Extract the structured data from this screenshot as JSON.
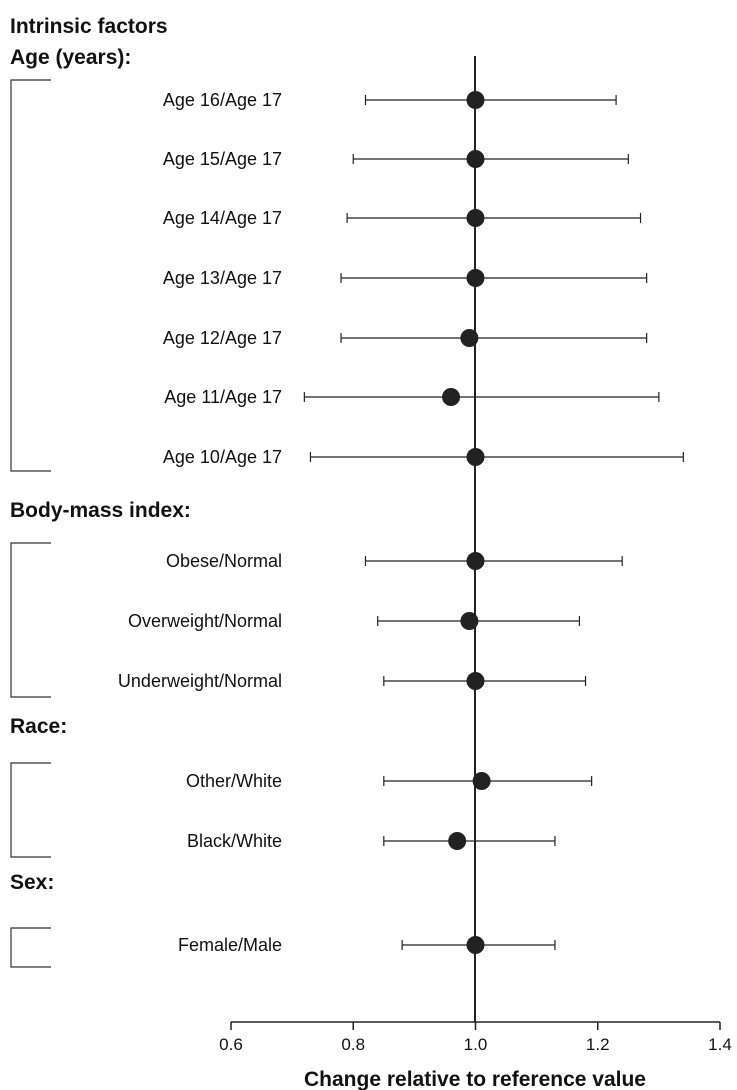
{
  "chart_data": {
    "type": "scatter",
    "title": "Intrinsic factors",
    "xlabel": "Change relative to reference value",
    "ylabel": "",
    "xlim": [
      0.6,
      1.4
    ],
    "xticks": [
      "0.6",
      "0.8",
      "1.0",
      "1.2",
      "1.4"
    ],
    "reference_value": 1.0,
    "grid": false,
    "legend": "none",
    "marker_color": "#222222",
    "groups": [
      {
        "name": "Age (years):",
        "rows": [
          {
            "label": "Age 16/Age 17",
            "estimate": 1.0,
            "lower": 0.82,
            "upper": 1.23
          },
          {
            "label": "Age 15/Age 17",
            "estimate": 1.0,
            "lower": 0.8,
            "upper": 1.25
          },
          {
            "label": "Age 14/Age 17",
            "estimate": 1.0,
            "lower": 0.79,
            "upper": 1.27
          },
          {
            "label": "Age 13/Age 17",
            "estimate": 1.0,
            "lower": 0.78,
            "upper": 1.28
          },
          {
            "label": "Age 12/Age 17",
            "estimate": 0.99,
            "lower": 0.78,
            "upper": 1.28
          },
          {
            "label": "Age 11/Age 17",
            "estimate": 0.96,
            "lower": 0.72,
            "upper": 1.3
          },
          {
            "label": "Age 10/Age 17",
            "estimate": 1.0,
            "lower": 0.73,
            "upper": 1.34
          }
        ]
      },
      {
        "name": "Body-mass index:",
        "rows": [
          {
            "label": "Obese/Normal",
            "estimate": 1.0,
            "lower": 0.82,
            "upper": 1.24
          },
          {
            "label": "Overweight/Normal",
            "estimate": 0.99,
            "lower": 0.84,
            "upper": 1.17
          },
          {
            "label": "Underweight/Normal",
            "estimate": 1.0,
            "lower": 0.85,
            "upper": 1.18
          }
        ]
      },
      {
        "name": "Race:",
        "rows": [
          {
            "label": "Other/White",
            "estimate": 1.01,
            "lower": 0.85,
            "upper": 1.19
          },
          {
            "label": "Black/White",
            "estimate": 0.97,
            "lower": 0.85,
            "upper": 1.13
          }
        ]
      },
      {
        "name": "Sex:",
        "rows": [
          {
            "label": "Female/Male",
            "estimate": 1.0,
            "lower": 0.88,
            "upper": 1.13
          }
        ]
      }
    ]
  }
}
